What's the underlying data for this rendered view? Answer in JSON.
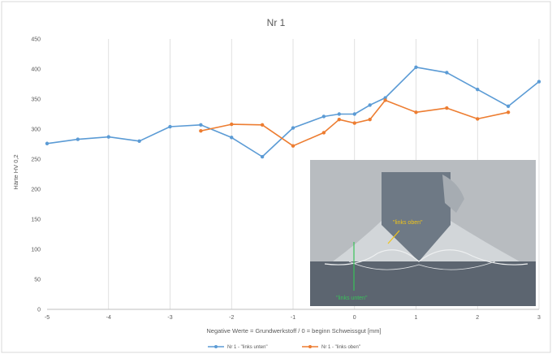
{
  "chart_data": {
    "type": "line",
    "title": "Nr 1",
    "xlabel": "Negative Werte = Grundwerkstoff / 0 = beginn Schweissgut [mm]",
    "ylabel": "Härte HV 0,2",
    "xlim": [
      -5,
      3
    ],
    "ylim": [
      0,
      450
    ],
    "x_ticks": [
      -5,
      -4,
      -3,
      -2,
      -1,
      0,
      1,
      2,
      3
    ],
    "y_ticks": [
      0,
      50,
      100,
      150,
      200,
      250,
      300,
      350,
      400,
      450
    ],
    "grid": "vertical",
    "legend_position": "bottom",
    "series": [
      {
        "name": "Nr 1 - \"links unten\"",
        "color": "#5b9bd5",
        "x": [
          -5,
          -4.5,
          -4,
          -3.5,
          -3,
          -2.5,
          -2,
          -1.5,
          -1,
          -0.5,
          -0.25,
          0,
          0.25,
          0.5,
          1,
          1.5,
          2,
          2.5,
          3
        ],
        "y": [
          276,
          283,
          287,
          280,
          304,
          307,
          286,
          254,
          302,
          321,
          325,
          325,
          340,
          352,
          403,
          394,
          366,
          338,
          379
        ]
      },
      {
        "name": "Nr 1 - \"links oben\"",
        "color": "#ed7d31",
        "x": [
          -2.5,
          -2,
          -1.5,
          -1,
          -0.5,
          -0.25,
          0,
          0.25,
          0.5,
          1,
          1.5,
          2,
          2.5
        ],
        "y": [
          297,
          308,
          307,
          272,
          294,
          316,
          310,
          316,
          348,
          328,
          335,
          317,
          328
        ]
      }
    ],
    "inset_photo": {
      "label_top": "\"links oben\"",
      "label_bottom": "\"links unten\"",
      "label_top_color": "#f0c419",
      "label_bottom_color": "#39c15a"
    }
  }
}
